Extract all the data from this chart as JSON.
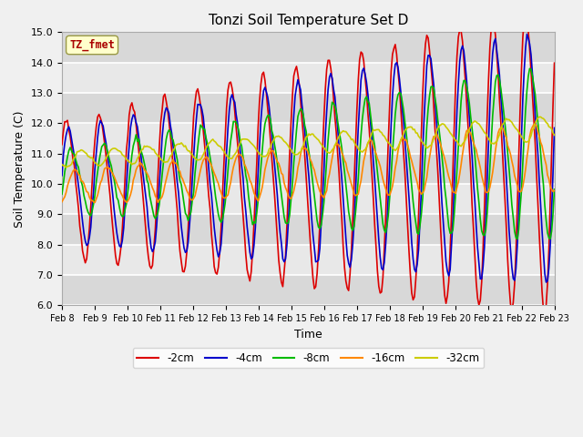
{
  "title": "Tonzi Soil Temperature Set D",
  "xlabel": "Time",
  "ylabel": "Soil Temperature (C)",
  "ylim": [
    6.0,
    15.0
  ],
  "yticks": [
    6.0,
    7.0,
    8.0,
    9.0,
    10.0,
    11.0,
    12.0,
    13.0,
    14.0,
    15.0
  ],
  "xtick_labels": [
    "Feb 8",
    "Feb 9",
    "Feb 10",
    "Feb 11",
    "Feb 12",
    "Feb 13",
    "Feb 14",
    "Feb 15",
    "Feb 16",
    "Feb 17",
    "Feb 18",
    "Feb 19",
    "Feb 20",
    "Feb 21",
    "Feb 22",
    "Feb 23"
  ],
  "series_colors": [
    "#dd0000",
    "#0000cc",
    "#00bb00",
    "#ff8800",
    "#cccc00"
  ],
  "series_labels": [
    "-2cm",
    "-4cm",
    "-8cm",
    "-16cm",
    "-32cm"
  ],
  "annotation_text": "TZ_fmet",
  "annotation_color": "#aa0000",
  "annotation_bg": "#ffffcc",
  "fig_facecolor": "#f0f0f0",
  "ax_facecolor": "#e8e8e8",
  "line_width": 1.2,
  "figsize": [
    6.4,
    4.8
  ],
  "dpi": 100
}
